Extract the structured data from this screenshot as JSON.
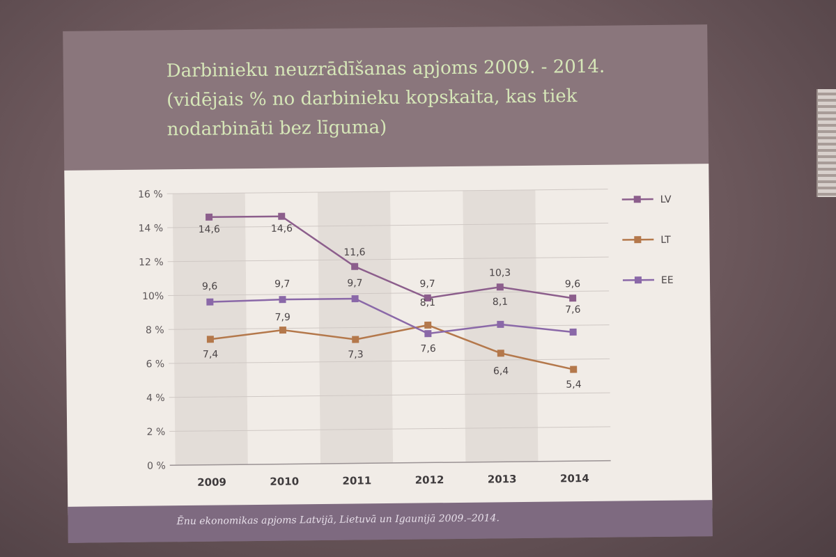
{
  "slide": {
    "title_lines": [
      "Darbinieku neuzrādīšanas apjoms 2009. - 2014.",
      "(vidējais % no darbinieku kopskaita, kas tiek",
      "nodarbināti bez līguma)"
    ],
    "footer": "Ēnu ekonomikas apjoms  Latvijā, Lietuvā un Igaunijā  2009.–2014."
  },
  "chart_data": {
    "type": "line",
    "x": [
      "2009",
      "2010",
      "2011",
      "2012",
      "2013",
      "2014"
    ],
    "series": [
      {
        "name": "LV",
        "values": [
          14.6,
          14.6,
          11.6,
          9.7,
          10.3,
          9.6
        ],
        "labels": [
          "14,6",
          "14,6",
          "11,6",
          "9,7",
          "10,3",
          "9,6"
        ],
        "color": "#8c5e8c"
      },
      {
        "name": "LT",
        "values": [
          7.4,
          7.9,
          7.3,
          8.1,
          6.4,
          5.4
        ],
        "labels": [
          "7,4",
          "7,9",
          "7,3",
          "8,1",
          "6,4",
          "5,4"
        ],
        "color": "#b4784b"
      },
      {
        "name": "EE",
        "values": [
          9.6,
          9.7,
          9.7,
          7.6,
          8.1,
          7.6
        ],
        "labels": [
          "9,6",
          "9,7",
          "9,7",
          "7,6",
          "8,1",
          "7,6"
        ],
        "color": "#8a68a8"
      }
    ],
    "yticks": [
      "0 %",
      "2 %",
      "4 %",
      "6 %",
      "8 %",
      "10%",
      "12 %",
      "14 %",
      "16 %"
    ],
    "ylim": [
      0,
      16
    ],
    "legend": "right",
    "grid": true
  }
}
